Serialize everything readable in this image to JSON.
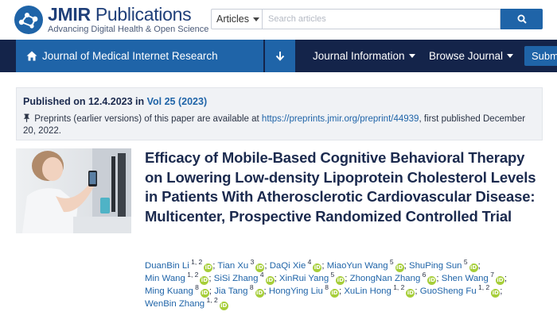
{
  "header": {
    "logo_bold": "JMIR",
    "logo_rest": " Publications",
    "tagline": "Advancing Digital Health & Open Science"
  },
  "search": {
    "scope": "Articles",
    "placeholder": "Search articles"
  },
  "nav": {
    "journal": "Journal of Medical Internet Research",
    "journal_info": "Journal Information",
    "browse": "Browse Journal",
    "submit": "Submit"
  },
  "publication": {
    "published_prefix": "Published on 12.4.2023 in ",
    "volume": "Vol 25 (2023)",
    "preprint_text": "Preprints (earlier versions) of this paper are available at ",
    "preprint_url": "https://preprints.jmir.org/preprint/44939",
    "preprint_suffix": ", first published December 20, 2022."
  },
  "article": {
    "title": "Efficacy of Mobile-Based Cognitive Behavioral Therapy on Lowering Low-density Lipoprotein Cholesterol Levels in Patients With Atherosclerotic Cardiovascular Disease: Multicenter, Prospective Randomized Controlled Trial"
  },
  "authors": [
    {
      "name": "DuanBin Li",
      "aff": "1, 2"
    },
    {
      "name": "Tian Xu",
      "aff": "3"
    },
    {
      "name": "DaQi Xie",
      "aff": "4"
    },
    {
      "name": "MiaoYun Wang",
      "aff": "5"
    },
    {
      "name": "ShuPing Sun",
      "aff": "5"
    },
    {
      "name": "Min Wang",
      "aff": "1, 2"
    },
    {
      "name": "SiSi Zhang",
      "aff": "4"
    },
    {
      "name": "XinRui Yang",
      "aff": "5"
    },
    {
      "name": "ZhongNan Zhang",
      "aff": "6"
    },
    {
      "name": "Shen Wang",
      "aff": "7"
    },
    {
      "name": "Ming Kuang",
      "aff": "8"
    },
    {
      "name": "Jia Tang",
      "aff": "8"
    },
    {
      "name": "HongYing Liu",
      "aff": "8"
    },
    {
      "name": "XuLin Hong",
      "aff": "1, 2"
    },
    {
      "name": "GuoSheng Fu",
      "aff": "1, 2"
    },
    {
      "name": "WenBin Zhang",
      "aff": "1, 2"
    }
  ],
  "orcid_label": "iD",
  "separator": ";",
  "colors": {
    "brand_blue": "#1f64a8",
    "nav_dark": "#14244a",
    "orcid_green": "#a6ce39"
  }
}
